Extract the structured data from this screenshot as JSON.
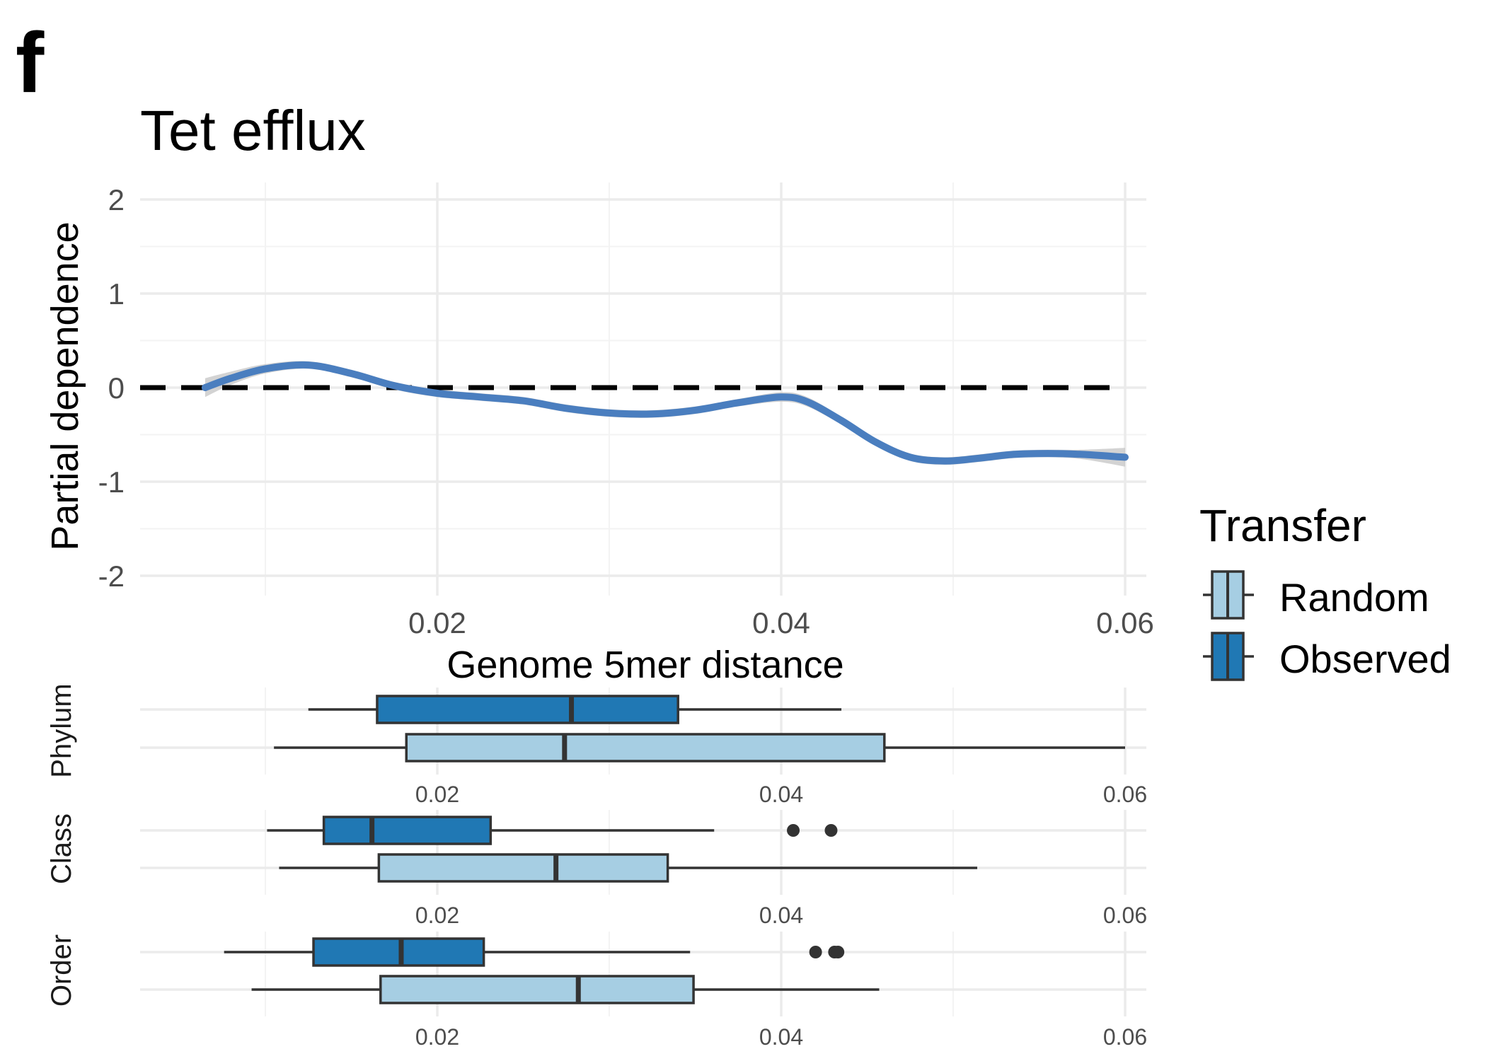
{
  "panel_label": "f",
  "colors": {
    "observed": "#2078b4",
    "random": "#a6cee3",
    "smooth_line": "#4a7ebf",
    "ribbon": "#c4c4c4",
    "box_outline": "#333333",
    "reference_line": "#000000",
    "grid": "#ebebeb"
  },
  "chart_data": [
    {
      "type": "line",
      "title": "Tet efflux",
      "xlabel": "Genome 5mer distance",
      "ylabel": "Partial dependence",
      "xlim": [
        0.0,
        0.0625
      ],
      "ylim": [
        -2.05,
        2.2
      ],
      "x_ticks": [
        "0.02",
        "0.04",
        "0.06"
      ],
      "x_tick_values": [
        0.02,
        0.04,
        0.06
      ],
      "y_ticks": [
        "2",
        "1",
        "0",
        "-1",
        "-2"
      ],
      "y_tick_values": [
        2,
        1,
        0,
        -1,
        -2
      ],
      "reference_line": {
        "y": 0,
        "style": "dashed"
      },
      "grid": true,
      "series": [
        {
          "x": [
            0.0065,
            0.008,
            0.01,
            0.0125,
            0.015,
            0.0175,
            0.02,
            0.0225,
            0.025,
            0.0275,
            0.03,
            0.0325,
            0.035,
            0.0375,
            0.04,
            0.0415,
            0.0435,
            0.0455,
            0.0475,
            0.0495,
            0.0515,
            0.0535,
            0.0555,
            0.0575,
            0.06
          ],
          "y": [
            0.0,
            0.1,
            0.2,
            0.24,
            0.15,
            0.02,
            -0.06,
            -0.1,
            -0.14,
            -0.22,
            -0.27,
            -0.28,
            -0.24,
            -0.16,
            -0.1,
            -0.15,
            -0.35,
            -0.58,
            -0.74,
            -0.78,
            -0.75,
            -0.71,
            -0.7,
            -0.71,
            -0.74
          ],
          "ribbon_halfwidth": [
            0.1,
            0.07,
            0.05,
            0.04,
            0.04,
            0.04,
            0.04,
            0.04,
            0.04,
            0.04,
            0.04,
            0.04,
            0.04,
            0.04,
            0.05,
            0.05,
            0.04,
            0.04,
            0.04,
            0.04,
            0.04,
            0.04,
            0.04,
            0.05,
            0.1
          ]
        }
      ],
      "legend": {
        "title": "Transfer",
        "position": "right",
        "entries": [
          {
            "label": "Random",
            "color": "#a6cee3"
          },
          {
            "label": "Observed",
            "color": "#2078b4"
          }
        ]
      }
    },
    {
      "type": "boxplot",
      "facets": [
        {
          "label": "Phylum",
          "boxes": [
            {
              "group": "Observed",
              "whisker_low": 0.0125,
              "q1": 0.0165,
              "median": 0.0278,
              "q3": 0.034,
              "whisker_high": 0.0435,
              "outliers": []
            },
            {
              "group": "Random",
              "whisker_low": 0.0105,
              "q1": 0.0182,
              "median": 0.0274,
              "q3": 0.046,
              "whisker_high": 0.06,
              "outliers": []
            }
          ]
        },
        {
          "label": "Class",
          "boxes": [
            {
              "group": "Observed",
              "whisker_low": 0.0101,
              "q1": 0.0134,
              "median": 0.0162,
              "q3": 0.0231,
              "whisker_high": 0.0361,
              "outliers": [
                0.0407,
                0.0429
              ]
            },
            {
              "group": "Random",
              "whisker_low": 0.0108,
              "q1": 0.0166,
              "median": 0.0269,
              "q3": 0.0334,
              "whisker_high": 0.0514,
              "outliers": []
            }
          ]
        },
        {
          "label": "Order",
          "boxes": [
            {
              "group": "Observed",
              "whisker_low": 0.0076,
              "q1": 0.0128,
              "median": 0.0179,
              "q3": 0.0227,
              "whisker_high": 0.0347,
              "outliers": [
                0.042,
                0.0431,
                0.0433
              ]
            },
            {
              "group": "Random",
              "whisker_low": 0.0092,
              "q1": 0.0167,
              "median": 0.0282,
              "q3": 0.0349,
              "whisker_high": 0.0457,
              "outliers": []
            }
          ]
        }
      ],
      "x_ticks": [
        "0.02",
        "0.04",
        "0.06"
      ],
      "x_tick_values": [
        0.02,
        0.04,
        0.06
      ],
      "xlim": [
        0.0,
        0.0625
      ],
      "grid": true
    }
  ]
}
